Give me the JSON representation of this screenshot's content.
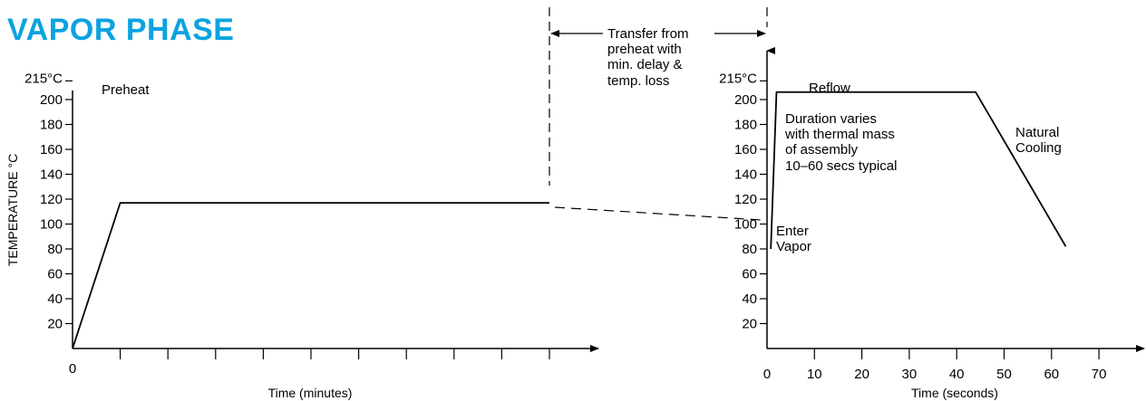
{
  "title": "VAPOR PHASE",
  "colors": {
    "title": "#0aa3e0",
    "line": "#000000"
  },
  "chart_data": [
    {
      "type": "line",
      "xlabel": "Time (minutes)",
      "ylabel": "TEMPERATURE °C",
      "ylim": [
        0,
        215
      ],
      "y_ticks": [
        20,
        40,
        60,
        80,
        100,
        120,
        140,
        160,
        180,
        200
      ],
      "y_tick_labels": [
        "20",
        "40",
        "60",
        "80",
        "100",
        "120",
        "140",
        "160",
        "180",
        "200"
      ],
      "y_extra_tick": {
        "value": 215,
        "label": "215°C"
      },
      "x_origin_label": "0",
      "x_unlabeled_ticks": 10,
      "series": [
        {
          "points": [
            [
              0,
              0
            ],
            [
              1,
              117
            ],
            [
              10,
              117
            ]
          ]
        }
      ],
      "annotations": [
        {
          "text": "Preheat",
          "anchor": "top-left"
        }
      ]
    },
    {
      "type": "line",
      "xlabel": "Time (seconds)",
      "ylim": [
        0,
        230
      ],
      "xlim": [
        0,
        80
      ],
      "y_ticks": [
        20,
        40,
        60,
        80,
        100,
        120,
        140,
        160,
        180,
        200
      ],
      "y_tick_labels": [
        "20",
        "40",
        "60",
        "80",
        "100",
        "120",
        "140",
        "160",
        "180",
        "200"
      ],
      "y_extra_tick": {
        "value": 215,
        "label": "215°C"
      },
      "x_ticks": [
        0,
        10,
        20,
        30,
        40,
        50,
        60,
        70
      ],
      "x_tick_labels": [
        "0",
        "10",
        "20",
        "30",
        "40",
        "50",
        "60",
        "70"
      ],
      "series": [
        {
          "points": [
            [
              0.8,
              80
            ],
            [
              2,
              206
            ],
            [
              44,
              206
            ],
            [
              63,
              82
            ]
          ]
        }
      ],
      "annotations": [
        {
          "text": "Reflow"
        },
        {
          "lines": [
            "Duration varies",
            "with thermal mass",
            "of assembly",
            "10–60 secs typical"
          ]
        },
        {
          "lines": [
            "Natural",
            "Cooling"
          ]
        },
        {
          "lines": [
            "Enter",
            "Vapor"
          ]
        }
      ]
    }
  ],
  "transfer": {
    "lines": [
      "Transfer from",
      "preheat with",
      "min. delay &",
      "temp. loss"
    ]
  }
}
